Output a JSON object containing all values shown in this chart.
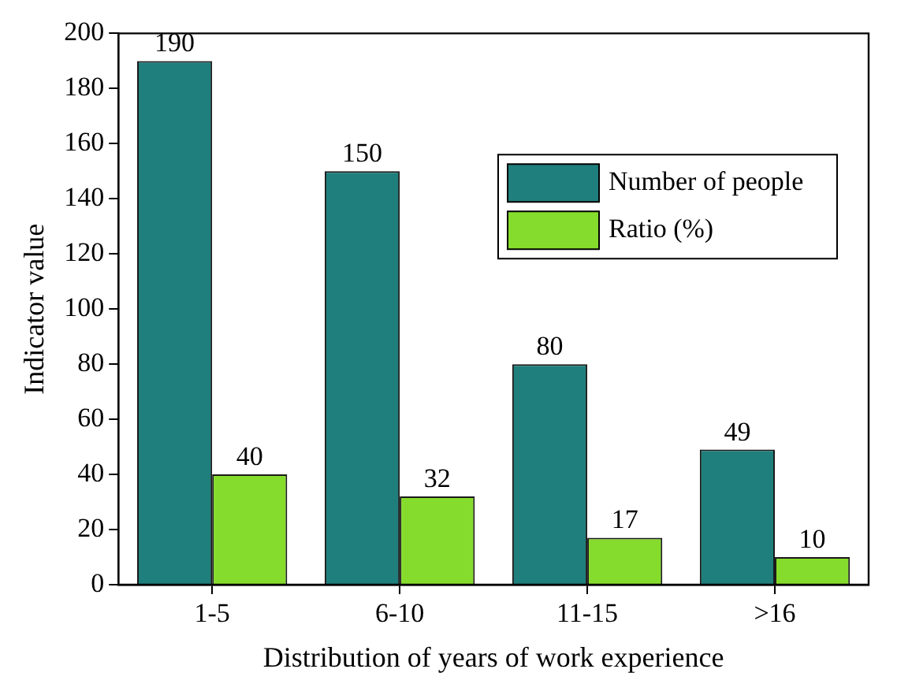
{
  "chart_data": {
    "type": "bar",
    "xlabel": "Distribution of years of work experience",
    "ylabel": "Indicator value",
    "categories": [
      "1-5",
      "6-10",
      "11-15",
      ">16"
    ],
    "series": [
      {
        "name": "Number of people",
        "color": "#1f7f7c",
        "values": [
          190,
          150,
          80,
          49
        ]
      },
      {
        "name": "Ratio (%)",
        "color": "#86dc2c",
        "values": [
          40,
          32,
          17,
          10
        ]
      }
    ],
    "ylim": [
      0,
      200
    ],
    "yticks": [
      0,
      20,
      40,
      60,
      80,
      100,
      120,
      140,
      160,
      180,
      200
    ],
    "grid": false,
    "legend": "top right",
    "data_labels": true
  }
}
